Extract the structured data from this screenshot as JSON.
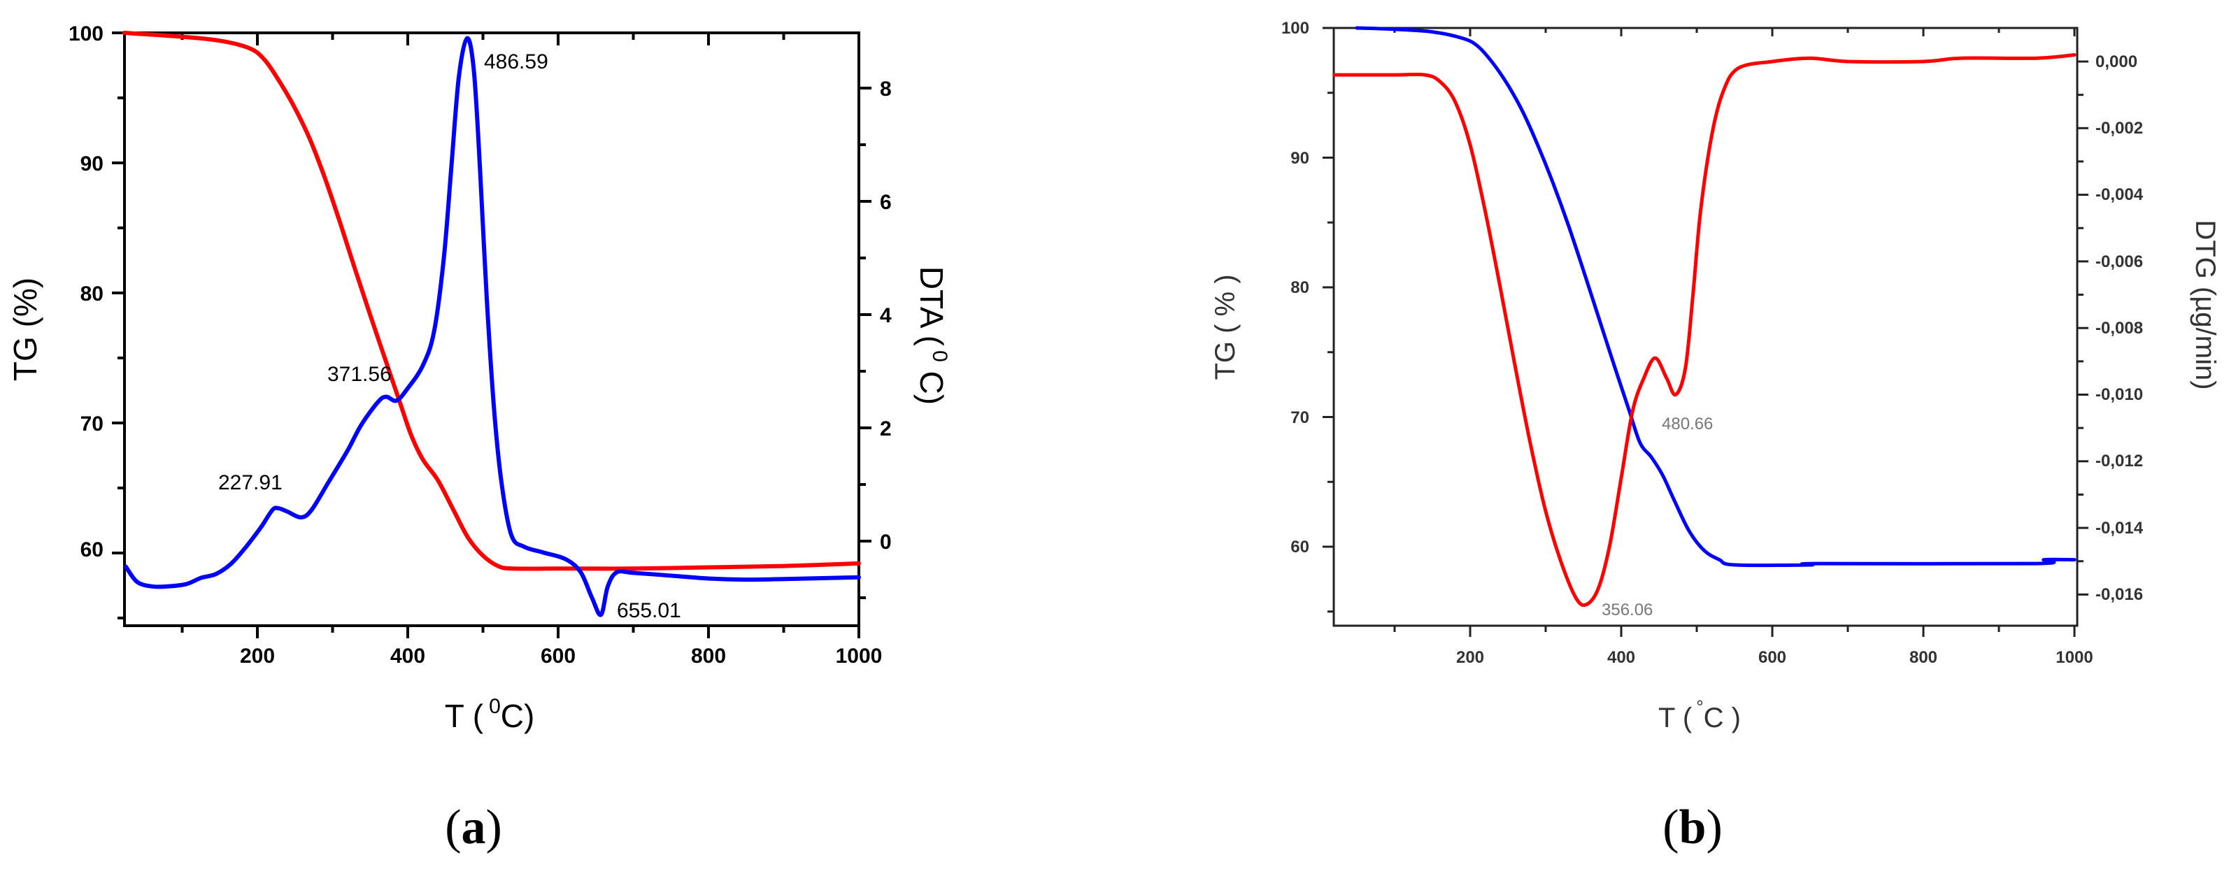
{
  "chart_data": [
    {
      "panel": "(a)",
      "type": "line",
      "xlabel": "T ( 0C)",
      "xlabel_main": "T (",
      "xlabel_sup": "0",
      "xlabel_end": "C)",
      "ylabel": "TG (%)",
      "y2label": "DTA ( 0 C)",
      "y2label_main": "DTA (",
      "y2label_sup": "0",
      "y2label_end": " C)",
      "xlim": [
        23,
        1000
      ],
      "ylim": [
        54.4,
        100
      ],
      "y2lim": [
        -1.49,
        8.97
      ],
      "x_ticks": [
        200,
        400,
        600,
        800,
        1000
      ],
      "y_ticks": [
        60,
        70,
        80,
        90,
        100
      ],
      "y2_ticks": [
        0,
        2,
        4,
        6,
        8
      ],
      "grid": false,
      "legend": null,
      "series": [
        {
          "name": "TG",
          "axis": "left",
          "color": "#ff0000",
          "points": [
            [
              23,
              100
            ],
            [
              100,
              99.7
            ],
            [
              150,
              99.4
            ],
            [
              190,
              98.8
            ],
            [
              210,
              97.9
            ],
            [
              230,
              96.2
            ],
            [
              250,
              94.2
            ],
            [
              270,
              91.8
            ],
            [
              290,
              88.8
            ],
            [
              310,
              85.4
            ],
            [
              330,
              81.8
            ],
            [
              350,
              78.3
            ],
            [
              370,
              74.9
            ],
            [
              390,
              71.5
            ],
            [
              405,
              69.0
            ],
            [
              420,
              67.2
            ],
            [
              440,
              65.6
            ],
            [
              460,
              63.4
            ],
            [
              480,
              61.2
            ],
            [
              500,
              59.8
            ],
            [
              520,
              59.0
            ],
            [
              540,
              58.8
            ],
            [
              600,
              58.8
            ],
            [
              700,
              58.8
            ],
            [
              800,
              58.9
            ],
            [
              900,
              59.0
            ],
            [
              1000,
              59.2
            ]
          ]
        },
        {
          "name": "DTA",
          "axis": "right",
          "color": "#0000ff",
          "points": [
            [
              25,
              -0.45
            ],
            [
              40,
              -0.72
            ],
            [
              60,
              -0.8
            ],
            [
              80,
              -0.8
            ],
            [
              105,
              -0.76
            ],
            [
              125,
              -0.65
            ],
            [
              145,
              -0.58
            ],
            [
              165,
              -0.4
            ],
            [
              185,
              -0.1
            ],
            [
              205,
              0.25
            ],
            [
              220,
              0.55
            ],
            [
              228,
              0.58
            ],
            [
              240,
              0.52
            ],
            [
              258,
              0.42
            ],
            [
              272,
              0.55
            ],
            [
              295,
              1.05
            ],
            [
              320,
              1.6
            ],
            [
              338,
              2.05
            ],
            [
              360,
              2.45
            ],
            [
              371,
              2.55
            ],
            [
              385,
              2.48
            ],
            [
              400,
              2.7
            ],
            [
              420,
              3.1
            ],
            [
              435,
              3.7
            ],
            [
              448,
              5.0
            ],
            [
              458,
              6.6
            ],
            [
              468,
              8.2
            ],
            [
              479,
              8.88
            ],
            [
              488,
              8.3
            ],
            [
              496,
              6.6
            ],
            [
              505,
              4.3
            ],
            [
              515,
              2.3
            ],
            [
              525,
              1.0
            ],
            [
              538,
              0.1
            ],
            [
              555,
              -0.1
            ],
            [
              580,
              -0.2
            ],
            [
              610,
              -0.32
            ],
            [
              630,
              -0.55
            ],
            [
              645,
              -1.0
            ],
            [
              657,
              -1.3
            ],
            [
              666,
              -0.8
            ],
            [
              678,
              -0.55
            ],
            [
              700,
              -0.56
            ],
            [
              760,
              -0.62
            ],
            [
              800,
              -0.66
            ],
            [
              850,
              -0.68
            ],
            [
              900,
              -0.67
            ],
            [
              1000,
              -0.64
            ]
          ]
        }
      ],
      "annotations": [
        {
          "text": "227.91",
          "x": 228,
          "y2": 0.58
        },
        {
          "text": "371.56",
          "x": 371,
          "y2": 2.55
        },
        {
          "text": "486.59",
          "x": 479,
          "y2": 8.88
        },
        {
          "text": "655.01",
          "x": 657,
          "y2": -1.3
        }
      ]
    },
    {
      "panel": "(b)",
      "type": "line",
      "xlabel": "T ( °C )",
      "xlabel_main": "T (",
      "xlabel_sup": "°",
      "xlabel_end": "C )",
      "ylabel": "TG ( % )",
      "y2label": "DTG (µg/min)",
      "xlim": [
        20,
        1000
      ],
      "ylim": [
        54.5,
        100
      ],
      "y2lim": [
        -0.0169,
        0.001
      ],
      "x_ticks": [
        200,
        400,
        600,
        800,
        1000
      ],
      "y_ticks": [
        60,
        70,
        80,
        90,
        100
      ],
      "y2_ticks": [
        "0,000",
        "-0,002",
        "-0,004",
        "-0,006",
        "-0,008",
        "-0,010",
        "-0,012",
        "-0,014",
        "-0,016"
      ],
      "y2_tick_values": [
        0,
        -0.002,
        -0.004,
        -0.006,
        -0.008,
        -0.01,
        -0.012,
        -0.014,
        -0.016
      ],
      "grid": false,
      "legend": null,
      "series": [
        {
          "name": "TG",
          "axis": "left",
          "color": "#0000ff",
          "points": [
            [
              50,
              100
            ],
            [
              100,
              99.9
            ],
            [
              150,
              99.7
            ],
            [
              190,
              99.2
            ],
            [
              210,
              98.6
            ],
            [
              230,
              97.3
            ],
            [
              250,
              95.6
            ],
            [
              270,
              93.5
            ],
            [
              290,
              90.9
            ],
            [
              310,
              88.0
            ],
            [
              330,
              84.8
            ],
            [
              350,
              81.3
            ],
            [
              370,
              77.7
            ],
            [
              390,
              74.1
            ],
            [
              410,
              70.6
            ],
            [
              425,
              68.0
            ],
            [
              440,
              66.9
            ],
            [
              455,
              65.5
            ],
            [
              470,
              63.6
            ],
            [
              490,
              61.2
            ],
            [
              510,
              59.7
            ],
            [
              530,
              59.0
            ],
            [
              550,
              58.6
            ],
            [
              650,
              58.6
            ],
            [
              660,
              58.7
            ],
            [
              950,
              58.7
            ],
            [
              960,
              59.0
            ],
            [
              1000,
              59.0
            ]
          ]
        },
        {
          "name": "DTG",
          "axis": "right",
          "color": "#ff0000",
          "points": [
            [
              20,
              -0.0004
            ],
            [
              100,
              -0.0004
            ],
            [
              140,
              -0.0004
            ],
            [
              160,
              -0.0006
            ],
            [
              180,
              -0.0012
            ],
            [
              200,
              -0.0025
            ],
            [
              220,
              -0.0045
            ],
            [
              240,
              -0.0068
            ],
            [
              260,
              -0.0092
            ],
            [
              280,
              -0.0115
            ],
            [
              300,
              -0.0135
            ],
            [
              320,
              -0.015
            ],
            [
              340,
              -0.0161
            ],
            [
              354,
              -0.0163
            ],
            [
              370,
              -0.0158
            ],
            [
              385,
              -0.0145
            ],
            [
              400,
              -0.0125
            ],
            [
              415,
              -0.0105
            ],
            [
              430,
              -0.0095
            ],
            [
              445,
              -0.0089
            ],
            [
              460,
              -0.0095
            ],
            [
              472,
              -0.01
            ],
            [
              485,
              -0.0092
            ],
            [
              495,
              -0.007
            ],
            [
              505,
              -0.0045
            ],
            [
              520,
              -0.0022
            ],
            [
              535,
              -0.0009
            ],
            [
              555,
              -0.0002
            ],
            [
              600,
              0.0
            ],
            [
              650,
              0.0001
            ],
            [
              700,
              0.0
            ],
            [
              800,
              0.0
            ],
            [
              850,
              0.0001
            ],
            [
              950,
              0.0001
            ],
            [
              1000,
              0.0002
            ]
          ]
        }
      ],
      "annotations": [
        {
          "text": "356.06",
          "x": 354,
          "y2": -0.0163
        },
        {
          "text": "480.66",
          "x": 472,
          "y2": -0.01
        }
      ]
    }
  ],
  "panels": {
    "a": {
      "label_open": "(",
      "label_letter": "a",
      "label_close": ")",
      "x_tick_labels": [
        "200",
        "400",
        "600",
        "800",
        "1000"
      ],
      "y_tick_labels": [
        "60",
        "70",
        "80",
        "90",
        "100"
      ],
      "y2_tick_labels": [
        "0",
        "2",
        "4",
        "6",
        "8"
      ],
      "ylabel": "TG (%)",
      "xlabel_main": "T (",
      "xlabel_sup": "0",
      "xlabel_end": "C)",
      "y2label_main": "DTA (",
      "y2label_sup": "0",
      "y2label_end": " C)",
      "annotations": [
        "227.91",
        "371.56",
        "486.59",
        "655.01"
      ]
    },
    "b": {
      "label_open": "(",
      "label_letter": "b",
      "label_close": ")",
      "x_tick_labels": [
        "200",
        "400",
        "600",
        "800",
        "1000"
      ],
      "y_tick_labels": [
        "60",
        "70",
        "80",
        "90",
        "100"
      ],
      "y2_tick_labels": [
        "0,000",
        "-0,002",
        "-0,004",
        "-0,006",
        "-0,008",
        "-0,010",
        "-0,012",
        "-0,014",
        "-0,016"
      ],
      "ylabel": "TG ( % )",
      "xlabel_main": "T (",
      "xlabel_sup": "°",
      "xlabel_end": "C )",
      "y2label": "DTG (µg/min)",
      "annotations": [
        "356.06",
        "480.66"
      ]
    }
  },
  "colors": {
    "red": "#ff0000",
    "blue": "#0000ff",
    "axis": "#000000",
    "axis_b": "#222222"
  }
}
